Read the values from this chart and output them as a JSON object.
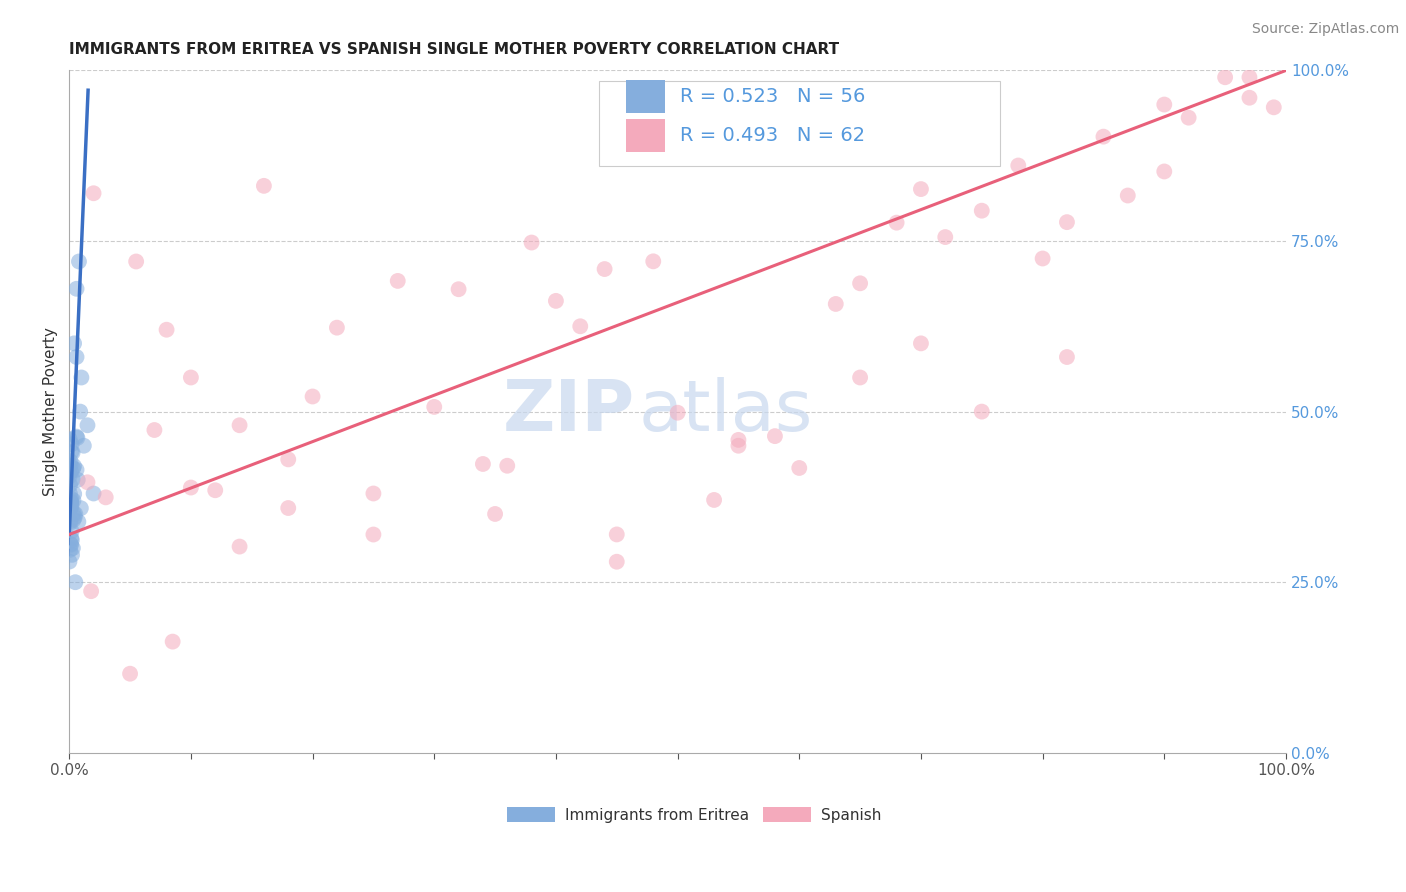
{
  "title": "IMMIGRANTS FROM ERITREA VS SPANISH SINGLE MOTHER POVERTY CORRELATION CHART",
  "source": "Source: ZipAtlas.com",
  "ylabel": "Single Mother Poverty",
  "legend_label1": "Immigrants from Eritrea",
  "legend_label2": "Spanish",
  "legend_r1": "R = 0.523",
  "legend_n1": "N = 56",
  "legend_r2": "R = 0.493",
  "legend_n2": "N = 62",
  "blue_color": "#85AEDD",
  "pink_color": "#F4AABC",
  "blue_line_color": "#3A6FC4",
  "pink_line_color": "#E8607A",
  "right_axis_color": "#5599DD",
  "background_color": "#FFFFFF",
  "watermark_zip": "ZIP",
  "watermark_atlas": "atlas",
  "title_fontsize": 11,
  "source_fontsize": 10,
  "axis_label_fontsize": 11,
  "tick_fontsize": 11,
  "legend_fontsize": 14,
  "watermark_fontsize": 52,
  "xlim": [
    0,
    100
  ],
  "ylim": [
    0,
    100
  ],
  "xticks": [
    0,
    10,
    20,
    30,
    40,
    50,
    60,
    70,
    80,
    90,
    100
  ],
  "yticks_right": [
    0,
    25,
    50,
    75,
    100
  ],
  "blue_line_x0": 0.0,
  "blue_line_y0": 32.0,
  "blue_line_slope": 42.0,
  "blue_line_xmax_solid": 1.55,
  "pink_line_x0": 0.0,
  "pink_line_y0": 32.0,
  "pink_line_x1": 100.0,
  "pink_line_y1": 100.0
}
